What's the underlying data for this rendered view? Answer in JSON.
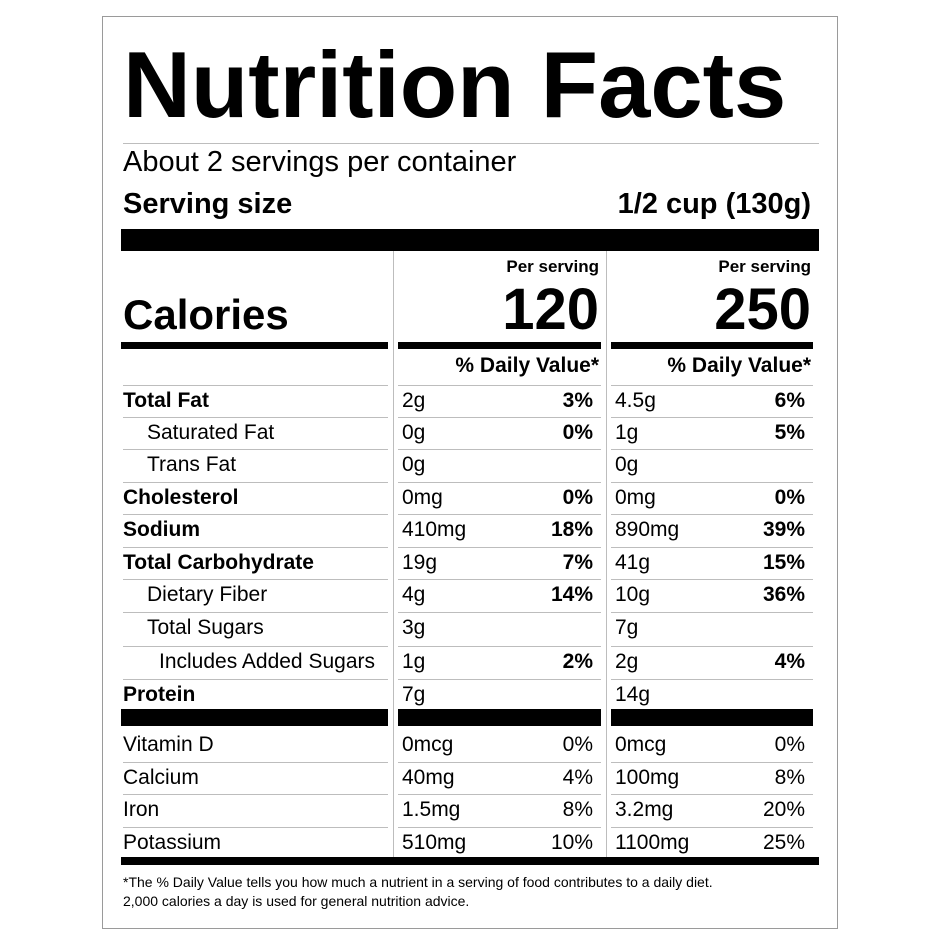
{
  "title": "Nutrition Facts",
  "servings_per_container": "About 2 servings per container",
  "serving_size_label": "Serving size",
  "serving_size_value": "1/2 cup (130g)",
  "calories_label": "Calories",
  "columns": [
    {
      "header": "Per serving",
      "calories": "120",
      "dv_header": "% Daily Value*"
    },
    {
      "header": "Per serving",
      "calories": "250",
      "dv_header": "% Daily Value*"
    }
  ],
  "nutrients": [
    {
      "name": "Total Fat",
      "bold": true,
      "indent": 0,
      "c1_amt": "2g",
      "c1_pct": "3%",
      "c2_amt": "4.5g",
      "c2_pct": "6%"
    },
    {
      "name": "Saturated Fat",
      "bold": false,
      "indent": 1,
      "c1_amt": "0g",
      "c1_pct": "0%",
      "c2_amt": "1g",
      "c2_pct": "5%"
    },
    {
      "name": "Trans Fat",
      "bold": false,
      "indent": 1,
      "c1_amt": "0g",
      "c1_pct": "",
      "c2_amt": "0g",
      "c2_pct": ""
    },
    {
      "name": "Cholesterol",
      "bold": true,
      "indent": 0,
      "c1_amt": "0mg",
      "c1_pct": "0%",
      "c2_amt": "0mg",
      "c2_pct": "0%"
    },
    {
      "name": "Sodium",
      "bold": true,
      "indent": 0,
      "c1_amt": "410mg",
      "c1_pct": "18%",
      "c2_amt": "890mg",
      "c2_pct": "39%"
    },
    {
      "name": "Total Carbohydrate",
      "bold": true,
      "indent": 0,
      "c1_amt": "19g",
      "c1_pct": "7%",
      "c2_amt": "41g",
      "c2_pct": "15%"
    },
    {
      "name": "Dietary Fiber",
      "bold": false,
      "indent": 1,
      "c1_amt": "4g",
      "c1_pct": "14%",
      "c2_amt": "10g",
      "c2_pct": "36%"
    },
    {
      "name": "Total Sugars",
      "bold": false,
      "indent": 1,
      "c1_amt": "3g",
      "c1_pct": "",
      "c2_amt": "7g",
      "c2_pct": ""
    },
    {
      "name": "Includes Added Sugars",
      "bold": false,
      "indent": 2,
      "c1_amt": "1g",
      "c1_pct": "2%",
      "c2_amt": "2g",
      "c2_pct": "4%"
    },
    {
      "name": "Protein",
      "bold": true,
      "indent": 0,
      "c1_amt": "7g",
      "c1_pct": "",
      "c2_amt": "14g",
      "c2_pct": ""
    }
  ],
  "vitamins": [
    {
      "name": "Vitamin D",
      "c1_amt": "0mcg",
      "c1_pct": "0%",
      "c2_amt": "0mcg",
      "c2_pct": "0%"
    },
    {
      "name": "Calcium",
      "c1_amt": "40mg",
      "c1_pct": "4%",
      "c2_amt": "100mg",
      "c2_pct": "8%"
    },
    {
      "name": "Iron",
      "c1_amt": "1.5mg",
      "c1_pct": "8%",
      "c2_amt": "3.2mg",
      "c2_pct": "20%"
    },
    {
      "name": "Potassium",
      "c1_amt": "510mg",
      "c1_pct": "10%",
      "c2_amt": "1100mg",
      "c2_pct": "25%"
    }
  ],
  "footnote_line1": "*The % Daily Value tells you how much a nutrient in a serving of food contributes to a daily diet.",
  "footnote_line2": "2,000 calories a day is used for general nutrition advice."
}
